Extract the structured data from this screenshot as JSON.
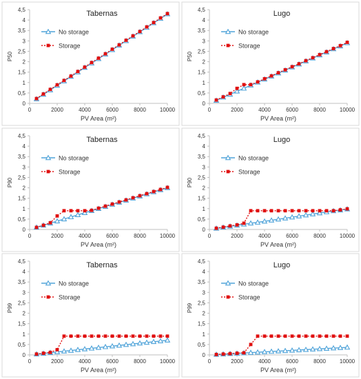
{
  "colors": {
    "no_storage": "#4fa3d9",
    "storage": "#e01010",
    "axis": "#bfbfbf",
    "text": "#333333"
  },
  "chart_data": [
    {
      "type": "line",
      "title": "Tabernas",
      "ylabel": "P50",
      "xlabel": "PV Area (m²)",
      "xlim": [
        0,
        10000
      ],
      "ylim": [
        0,
        4.5
      ],
      "xticks": [
        "0",
        "2000",
        "4000",
        "6000",
        "8000",
        "10000"
      ],
      "yticks": [
        "0",
        "0,5",
        "1",
        "1,5",
        "2",
        "2,5",
        "3",
        "3,5",
        "4",
        "4,5"
      ],
      "x": [
        500,
        1000,
        1500,
        2000,
        2500,
        3000,
        3500,
        4000,
        4500,
        5000,
        5500,
        6000,
        6500,
        7000,
        7500,
        8000,
        8500,
        9000,
        9500,
        10000
      ],
      "series": [
        {
          "name": "No storage",
          "values": [
            0.21,
            0.43,
            0.64,
            0.86,
            1.07,
            1.29,
            1.5,
            1.72,
            1.93,
            2.14,
            2.36,
            2.57,
            2.79,
            3.0,
            3.22,
            3.43,
            3.64,
            3.86,
            4.07,
            4.29
          ]
        },
        {
          "name": "Storage",
          "values": [
            0.23,
            0.45,
            0.67,
            0.89,
            1.1,
            1.31,
            1.53,
            1.74,
            1.96,
            2.17,
            2.38,
            2.6,
            2.81,
            3.03,
            3.24,
            3.45,
            3.67,
            3.88,
            4.1,
            4.31
          ]
        }
      ]
    },
    {
      "type": "line",
      "title": "Lugo",
      "ylabel": "P50",
      "xlabel": "PV Area (m²)",
      "xlim": [
        0,
        10000
      ],
      "ylim": [
        0,
        4.5
      ],
      "xticks": [
        "0",
        "2000",
        "4000",
        "6000",
        "8000",
        "10000"
      ],
      "yticks": [
        "0",
        "0,5",
        "1",
        "1,5",
        "2",
        "2,5",
        "3",
        "3,5",
        "4",
        "4,5"
      ],
      "x": [
        500,
        1000,
        1500,
        2000,
        2500,
        3000,
        3500,
        4000,
        4500,
        5000,
        5500,
        6000,
        6500,
        7000,
        7500,
        8000,
        8500,
        9000,
        9500,
        10000
      ],
      "series": [
        {
          "name": "No storage",
          "values": [
            0.14,
            0.29,
            0.43,
            0.58,
            0.72,
            0.87,
            1.01,
            1.16,
            1.3,
            1.45,
            1.59,
            1.74,
            1.88,
            2.03,
            2.17,
            2.32,
            2.46,
            2.61,
            2.75,
            2.9
          ]
        },
        {
          "name": "Storage",
          "values": [
            0.16,
            0.31,
            0.47,
            0.72,
            0.9,
            0.9,
            1.03,
            1.18,
            1.32,
            1.47,
            1.61,
            1.76,
            1.9,
            2.05,
            2.19,
            2.34,
            2.48,
            2.63,
            2.77,
            2.93
          ]
        }
      ]
    },
    {
      "type": "line",
      "title": "Tabernas",
      "ylabel": "P90",
      "xlabel": "PV Area (m²)",
      "xlim": [
        0,
        10000
      ],
      "ylim": [
        0,
        4.5
      ],
      "xticks": [
        "0",
        "2000",
        "4000",
        "6000",
        "8000",
        "10000"
      ],
      "yticks": [
        "0",
        "0,5",
        "1",
        "1,5",
        "2",
        "2,5",
        "3",
        "3,5",
        "4",
        "4,5"
      ],
      "x": [
        500,
        1000,
        1500,
        2000,
        2500,
        3000,
        3500,
        4000,
        4500,
        5000,
        5500,
        6000,
        6500,
        7000,
        7500,
        8000,
        8500,
        9000,
        9500,
        10000
      ],
      "series": [
        {
          "name": "No storage",
          "values": [
            0.1,
            0.2,
            0.3,
            0.4,
            0.5,
            0.6,
            0.7,
            0.8,
            0.9,
            1.0,
            1.1,
            1.2,
            1.3,
            1.4,
            1.5,
            1.6,
            1.7,
            1.8,
            1.9,
            2.0
          ]
        },
        {
          "name": "Storage",
          "values": [
            0.1,
            0.2,
            0.32,
            0.65,
            0.9,
            0.9,
            0.9,
            0.9,
            0.92,
            1.02,
            1.12,
            1.22,
            1.32,
            1.42,
            1.52,
            1.62,
            1.72,
            1.82,
            1.92,
            2.02
          ]
        }
      ]
    },
    {
      "type": "line",
      "title": "Lugo",
      "ylabel": "P90",
      "xlabel": "PV Area (m²)",
      "xlim": [
        0,
        10000
      ],
      "ylim": [
        0,
        4.5
      ],
      "xticks": [
        "0",
        "2000",
        "4000",
        "6000",
        "8000",
        "10000"
      ],
      "yticks": [
        "0",
        "0,5",
        "1",
        "1,5",
        "2",
        "2,5",
        "3",
        "3,5",
        "4",
        "4,5"
      ],
      "x": [
        500,
        1000,
        1500,
        2000,
        2500,
        3000,
        3500,
        4000,
        4500,
        5000,
        5500,
        6000,
        6500,
        7000,
        7500,
        8000,
        8500,
        9000,
        9500,
        10000
      ],
      "series": [
        {
          "name": "No storage",
          "values": [
            0.05,
            0.1,
            0.15,
            0.2,
            0.25,
            0.3,
            0.34,
            0.39,
            0.44,
            0.49,
            0.54,
            0.59,
            0.64,
            0.69,
            0.74,
            0.79,
            0.84,
            0.89,
            0.93,
            0.98
          ]
        },
        {
          "name": "Storage",
          "values": [
            0.06,
            0.11,
            0.17,
            0.22,
            0.3,
            0.9,
            0.9,
            0.9,
            0.9,
            0.9,
            0.9,
            0.9,
            0.9,
            0.9,
            0.9,
            0.9,
            0.9,
            0.9,
            0.94,
            0.99
          ]
        }
      ]
    },
    {
      "type": "line",
      "title": "Tabernas",
      "ylabel": "P99",
      "xlabel": "PV Area (m²)",
      "xlim": [
        0,
        10000
      ],
      "ylim": [
        0,
        4.5
      ],
      "xticks": [
        "0",
        "2000",
        "4000",
        "6000",
        "8000",
        "10000"
      ],
      "yticks": [
        "0",
        "0,5",
        "1",
        "1,5",
        "2",
        "2,5",
        "3",
        "3,5",
        "4",
        "4,5"
      ],
      "x": [
        500,
        1000,
        1500,
        2000,
        2500,
        3000,
        3500,
        4000,
        4500,
        5000,
        5500,
        6000,
        6500,
        7000,
        7500,
        8000,
        8500,
        9000,
        9500,
        10000
      ],
      "series": [
        {
          "name": "No storage",
          "values": [
            0.035,
            0.07,
            0.105,
            0.14,
            0.175,
            0.21,
            0.245,
            0.28,
            0.315,
            0.35,
            0.385,
            0.42,
            0.455,
            0.49,
            0.525,
            0.56,
            0.595,
            0.63,
            0.665,
            0.7
          ]
        },
        {
          "name": "Storage",
          "values": [
            0.04,
            0.08,
            0.12,
            0.25,
            0.9,
            0.9,
            0.9,
            0.9,
            0.9,
            0.9,
            0.9,
            0.9,
            0.9,
            0.9,
            0.9,
            0.9,
            0.9,
            0.9,
            0.9,
            0.9
          ]
        }
      ]
    },
    {
      "type": "line",
      "title": "Lugo",
      "ylabel": "P99",
      "xlabel": "PV Area (m²)",
      "xlim": [
        0,
        10000
      ],
      "ylim": [
        0,
        4.5
      ],
      "xticks": [
        "0",
        "2000",
        "4000",
        "6000",
        "8000",
        "10000"
      ],
      "yticks": [
        "0",
        "0,5",
        "1",
        "1,5",
        "2",
        "2,5",
        "3",
        "3,5",
        "4",
        "4,5"
      ],
      "x": [
        500,
        1000,
        1500,
        2000,
        2500,
        3000,
        3500,
        4000,
        4500,
        5000,
        5500,
        6000,
        6500,
        7000,
        7500,
        8000,
        8500,
        9000,
        9500,
        10000
      ],
      "series": [
        {
          "name": "No storage",
          "values": [
            0.018,
            0.036,
            0.054,
            0.072,
            0.09,
            0.108,
            0.126,
            0.144,
            0.162,
            0.18,
            0.198,
            0.216,
            0.234,
            0.252,
            0.27,
            0.288,
            0.306,
            0.324,
            0.342,
            0.36
          ]
        },
        {
          "name": "Storage",
          "values": [
            0.02,
            0.04,
            0.06,
            0.08,
            0.1,
            0.5,
            0.9,
            0.9,
            0.9,
            0.9,
            0.9,
            0.9,
            0.9,
            0.9,
            0.9,
            0.9,
            0.9,
            0.9,
            0.9,
            0.9
          ]
        }
      ]
    }
  ]
}
